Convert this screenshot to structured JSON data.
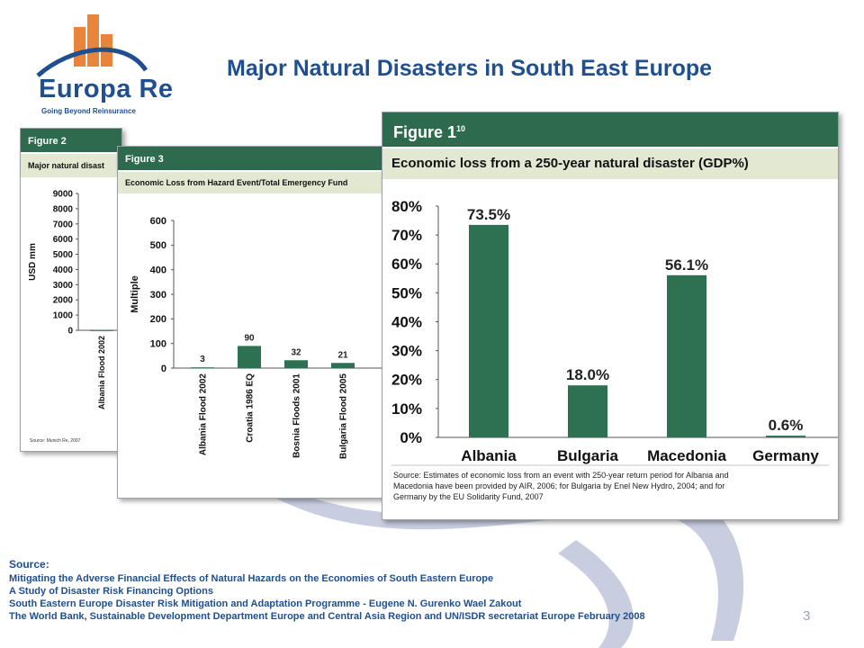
{
  "slide": {
    "title": "Major Natural Disasters in South East Europe",
    "page_number": "3",
    "colors": {
      "title": "#1f4f8f",
      "bar": "#2e7052",
      "figure_band": "#2e6b4e",
      "subtitle_band": "#e3e8d2",
      "swoosh": "#c9cde0"
    }
  },
  "logo": {
    "name": "Europa Re",
    "tagline": "Going Beyond Reinsurance"
  },
  "source": {
    "label": "Source",
    "lines": [
      "Mitigating the Adverse Financial Effects of Natural Hazards on the Economies of South Eastern Europe",
      "A Study of Disaster Risk Financing Options",
      "South Eastern Europe Disaster Risk Mitigation and Adaptation Programme - Eugene N. Gurenko Wael Zakout",
      "The World Bank, Sustainable Development Department Europe and Central Asia Region and UN/ISDR secretariat Europe February 2008"
    ]
  },
  "chart_data": [
    {
      "figure": "Figure 2",
      "type": "bar",
      "title": "Major natural disast",
      "ylabel": "USD mm",
      "ylim": [
        0,
        9000
      ],
      "yticks": [
        "0",
        "1000",
        "2000",
        "3000",
        "4000",
        "5000",
        "6000",
        "7000",
        "8000",
        "9000"
      ],
      "categories": [
        "Albania Flood 2002"
      ],
      "values": [
        10
      ],
      "source": "Source: Munich Re, 2007"
    },
    {
      "figure": "Figure 3",
      "type": "bar",
      "title": "Economic Loss from Hazard Event/Total Emergency Fund",
      "ylabel": "Multiple",
      "ylim": [
        0,
        600
      ],
      "yticks": [
        "0",
        "100",
        "200",
        "300",
        "400",
        "500",
        "600"
      ],
      "categories": [
        "Albania Flood 2002",
        "Croatia 1986 EQ",
        "Bosnia Floods 2001",
        "Bulgaria Flood 2005"
      ],
      "values": [
        3,
        90,
        32,
        21
      ],
      "value_labels": [
        "3",
        "90",
        "32",
        "21"
      ]
    },
    {
      "figure": "Figure 1",
      "figure_sup": "10",
      "type": "bar",
      "title": "Economic loss from a 250-year natural disaster (GDP%)",
      "ylim": [
        0,
        80
      ],
      "yticks": [
        "0%",
        "10%",
        "20%",
        "30%",
        "40%",
        "50%",
        "60%",
        "70%",
        "80%"
      ],
      "categories": [
        "Albania",
        "Bulgaria",
        "Macedonia",
        "Germany"
      ],
      "values": [
        73.5,
        18.0,
        56.1,
        0.6
      ],
      "value_labels": [
        "73.5%",
        "18.0%",
        "56.1%",
        "0.6%"
      ],
      "source_lines": [
        "Source: Estimates of economic loss from an event with 250-year return period for Albania and",
        "Macedonia have been provided by AIR, 2006; for Bulgaria by Enel New Hydro, 2004; and for",
        "Germany by the EU Solidarity Fund, 2007"
      ]
    }
  ]
}
